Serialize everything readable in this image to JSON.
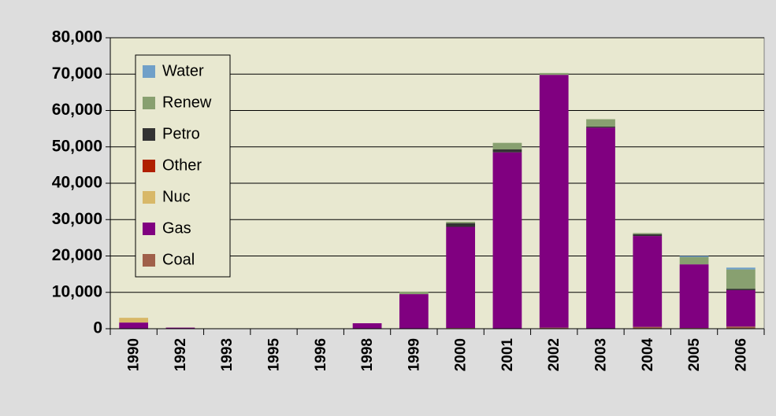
{
  "chart_data": {
    "type": "stacked_bar",
    "categories": [
      "1990",
      "1992",
      "1993",
      "1995",
      "1996",
      "1998",
      "1999",
      "2000",
      "2001",
      "2002",
      "2003",
      "2004",
      "2005",
      "2006"
    ],
    "series": [
      {
        "name": "Coal",
        "color": "#a0604a",
        "values": [
          0,
          0,
          0,
          0,
          0,
          0,
          0,
          200,
          0,
          300,
          0,
          500,
          200,
          600
        ]
      },
      {
        "name": "Gas",
        "color": "#800080",
        "values": [
          1700,
          300,
          0,
          0,
          0,
          1500,
          9500,
          27800,
          48500,
          69500,
          55300,
          25000,
          17500,
          10000
        ]
      },
      {
        "name": "Nuc",
        "color": "#d8b868",
        "values": [
          1300,
          0,
          0,
          0,
          0,
          0,
          0,
          0,
          0,
          0,
          0,
          0,
          0,
          0
        ]
      },
      {
        "name": "Other",
        "color": "#b02000",
        "values": [
          0,
          0,
          0,
          0,
          0,
          0,
          0,
          0,
          0,
          0,
          0,
          0,
          0,
          0
        ]
      },
      {
        "name": "Petro",
        "color": "#333333",
        "values": [
          0,
          0,
          0,
          0,
          0,
          0,
          0,
          1000,
          800,
          0,
          300,
          500,
          0,
          400
        ]
      },
      {
        "name": "Renew",
        "color": "#88a070",
        "values": [
          0,
          0,
          0,
          0,
          0,
          0,
          700,
          400,
          1800,
          500,
          2000,
          300,
          2000,
          5300
        ]
      },
      {
        "name": "Water",
        "color": "#70a0c8",
        "values": [
          0,
          0,
          0,
          0,
          0,
          0,
          0,
          0,
          0,
          0,
          0,
          0,
          300,
          500
        ]
      }
    ],
    "ylim": [
      0,
      80000
    ],
    "yticks": [
      0,
      {
        "value": 10000,
        "label": "10,000"
      },
      {
        "value": 20000,
        "label": "20,000"
      },
      {
        "value": 30000,
        "label": "30,000"
      },
      {
        "value": 40000,
        "label": "40,000"
      },
      {
        "value": 50000,
        "label": "50,000"
      },
      {
        "value": 60000,
        "label": "60,000"
      },
      {
        "value": 70000,
        "label": "70,000"
      },
      {
        "value": 80000,
        "label": "80,000"
      }
    ],
    "grid": true,
    "legend": "top-left"
  }
}
